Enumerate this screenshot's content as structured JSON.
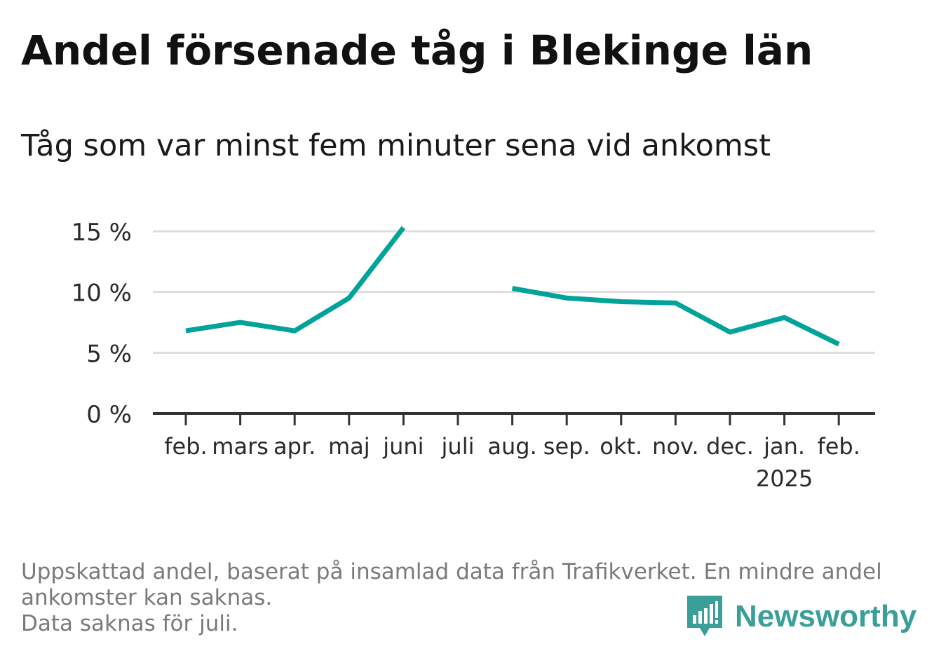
{
  "title": "Andel försenade tåg i Blekinge län",
  "subtitle": "Tåg som var minst fem minuter sena vid ankomst",
  "footnote": {
    "line1": "Uppskattad andel, baserat på insamlad data från Trafikverket. En mindre andel",
    "line2": "ankomster kan saknas.",
    "line3": "Data saknas för juli."
  },
  "brand": {
    "name": "Newsworthy",
    "icon": "newsworthy-logo-icon",
    "color": "#3a9f98"
  },
  "chart_data": {
    "type": "line",
    "categories": [
      "feb.",
      "mars",
      "apr.",
      "maj",
      "juni",
      "juli",
      "aug.",
      "sep.",
      "okt.",
      "nov.",
      "dec.",
      "jan.",
      "feb."
    ],
    "category_sublabels": [
      "",
      "",
      "",
      "",
      "",
      "",
      "",
      "",
      "",
      "",
      "",
      "2025",
      ""
    ],
    "series": [
      {
        "values": [
          6.8,
          7.5,
          6.8,
          9.5,
          15.3,
          null,
          10.3,
          9.5,
          9.2,
          9.1,
          6.7,
          7.9,
          5.7
        ],
        "color": "#00a39a"
      }
    ],
    "yticks": [
      0,
      5,
      10,
      15
    ],
    "ytick_labels": [
      "0 %",
      "5 %",
      "10 %",
      "15 %"
    ],
    "ylim": [
      0,
      15
    ],
    "xlabel": "",
    "ylabel": "",
    "grid": true,
    "axis_color": "#333333",
    "grid_color": "#dddddd"
  }
}
